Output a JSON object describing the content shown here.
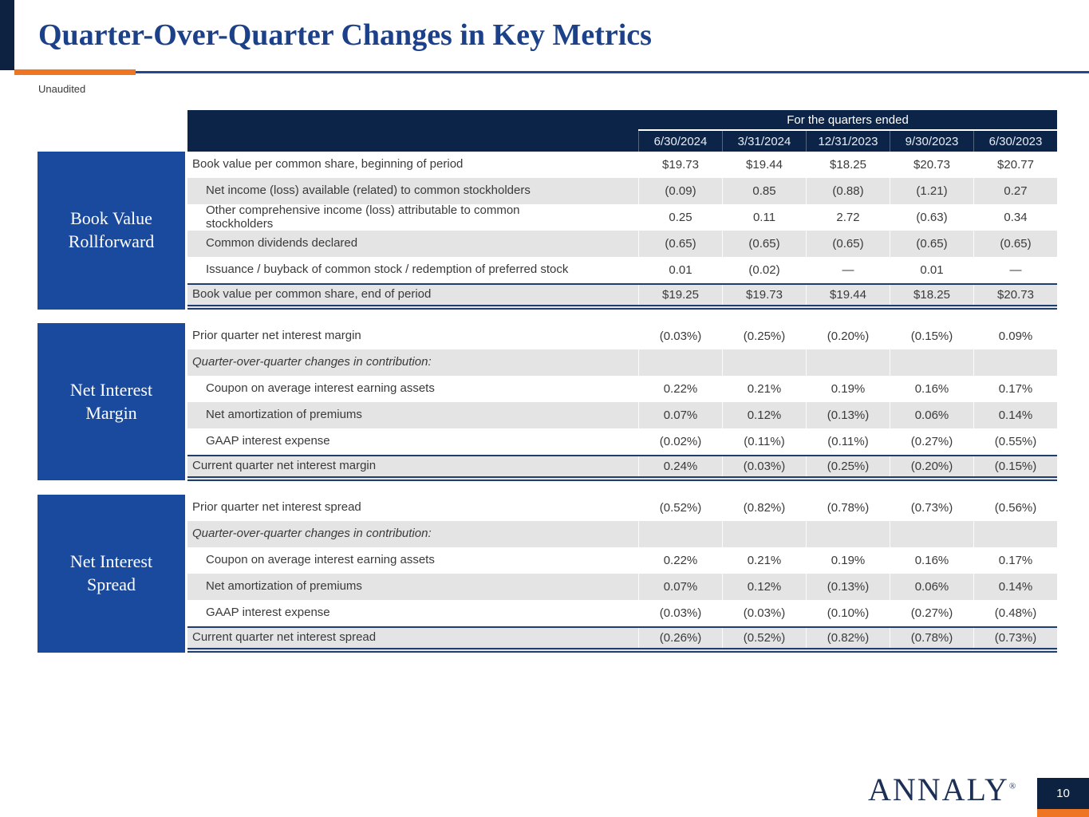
{
  "page": {
    "title": "Quarter-Over-Quarter Changes in Key Metrics",
    "subtitle": "Unaudited",
    "brand": "ANNALY",
    "brand_mark": "®",
    "page_number": "10"
  },
  "colors": {
    "accent_orange": "#EE7623",
    "title_blue": "#1C4189",
    "table_header_navy": "#0B2447",
    "sidebar_blue": "#1A4A9E",
    "row_gray": "#E4E4E4",
    "total_border_navy": "#1F3E6F",
    "footer_navy": "#0D2240"
  },
  "table": {
    "header": {
      "group_label": "For the quarters ended",
      "columns": [
        "6/30/2024",
        "3/31/2024",
        "12/31/2023",
        "9/30/2023",
        "6/30/2023"
      ]
    },
    "sections": [
      {
        "label": "Book Value Rollforward",
        "rows": [
          {
            "label": "Book value per common share, beginning of period",
            "indent": false,
            "italic": false,
            "shade": false,
            "total": false,
            "values": [
              "$19.73",
              "$19.44",
              "$18.25",
              "$20.73",
              "$20.77"
            ]
          },
          {
            "label": "Net income (loss) available (related) to common stockholders",
            "indent": true,
            "italic": false,
            "shade": true,
            "total": false,
            "values": [
              "(0.09)",
              "0.85",
              "(0.88)",
              "(1.21)",
              "0.27"
            ]
          },
          {
            "label": "Other comprehensive income (loss) attributable to common\nstockholders",
            "indent": true,
            "italic": false,
            "shade": false,
            "total": false,
            "values": [
              "0.25",
              "0.11",
              "2.72",
              "(0.63)",
              "0.34"
            ]
          },
          {
            "label": "Common dividends declared",
            "indent": true,
            "italic": false,
            "shade": true,
            "total": false,
            "values": [
              "(0.65)",
              "(0.65)",
              "(0.65)",
              "(0.65)",
              "(0.65)"
            ]
          },
          {
            "label": "Issuance / buyback of common stock / redemption of preferred stock",
            "indent": true,
            "italic": false,
            "shade": false,
            "total": false,
            "values": [
              "0.01",
              "(0.02)",
              "—",
              "0.01",
              "—"
            ]
          },
          {
            "label": "Book value per common share, end of period",
            "indent": false,
            "italic": false,
            "shade": true,
            "total": true,
            "values": [
              "$19.25",
              "$19.73",
              "$19.44",
              "$18.25",
              "$20.73"
            ]
          }
        ]
      },
      {
        "label": "Net Interest Margin",
        "rows": [
          {
            "label": "Prior quarter net interest margin",
            "indent": false,
            "italic": false,
            "shade": false,
            "total": false,
            "values": [
              "(0.03%)",
              "(0.25%)",
              "(0.20%)",
              "(0.15%)",
              "0.09%"
            ]
          },
          {
            "label": "Quarter-over-quarter changes in contribution:",
            "indent": false,
            "italic": true,
            "shade": true,
            "total": false,
            "values": [
              "",
              "",
              "",
              "",
              ""
            ]
          },
          {
            "label": "Coupon on average interest earning assets",
            "indent": true,
            "italic": false,
            "shade": false,
            "total": false,
            "values": [
              "0.22%",
              "0.21%",
              "0.19%",
              "0.16%",
              "0.17%"
            ]
          },
          {
            "label": "Net amortization of premiums",
            "indent": true,
            "italic": false,
            "shade": true,
            "total": false,
            "values": [
              "0.07%",
              "0.12%",
              "(0.13%)",
              "0.06%",
              "0.14%"
            ]
          },
          {
            "label": "GAAP interest expense",
            "indent": true,
            "italic": false,
            "shade": false,
            "total": false,
            "values": [
              "(0.02%)",
              "(0.11%)",
              "(0.11%)",
              "(0.27%)",
              "(0.55%)"
            ]
          },
          {
            "label": "Current quarter net interest margin",
            "indent": false,
            "italic": false,
            "shade": true,
            "total": true,
            "values": [
              "0.24%",
              "(0.03%)",
              "(0.25%)",
              "(0.20%)",
              "(0.15%)"
            ]
          }
        ]
      },
      {
        "label": "Net Interest Spread",
        "rows": [
          {
            "label": "Prior quarter net interest spread",
            "indent": false,
            "italic": false,
            "shade": false,
            "total": false,
            "values": [
              "(0.52%)",
              "(0.82%)",
              "(0.78%)",
              "(0.73%)",
              "(0.56%)"
            ]
          },
          {
            "label": "Quarter-over-quarter changes in contribution:",
            "indent": false,
            "italic": true,
            "shade": true,
            "total": false,
            "values": [
              "",
              "",
              "",
              "",
              ""
            ]
          },
          {
            "label": "Coupon on average interest earning assets",
            "indent": true,
            "italic": false,
            "shade": false,
            "total": false,
            "values": [
              "0.22%",
              "0.21%",
              "0.19%",
              "0.16%",
              "0.17%"
            ]
          },
          {
            "label": "Net amortization of premiums",
            "indent": true,
            "italic": false,
            "shade": true,
            "total": false,
            "values": [
              "0.07%",
              "0.12%",
              "(0.13%)",
              "0.06%",
              "0.14%"
            ]
          },
          {
            "label": "GAAP interest expense",
            "indent": true,
            "italic": false,
            "shade": false,
            "total": false,
            "values": [
              "(0.03%)",
              "(0.03%)",
              "(0.10%)",
              "(0.27%)",
              "(0.48%)"
            ]
          },
          {
            "label": "Current quarter net interest spread",
            "indent": false,
            "italic": false,
            "shade": true,
            "total": true,
            "values": [
              "(0.26%)",
              "(0.52%)",
              "(0.82%)",
              "(0.78%)",
              "(0.73%)"
            ]
          }
        ]
      }
    ]
  }
}
